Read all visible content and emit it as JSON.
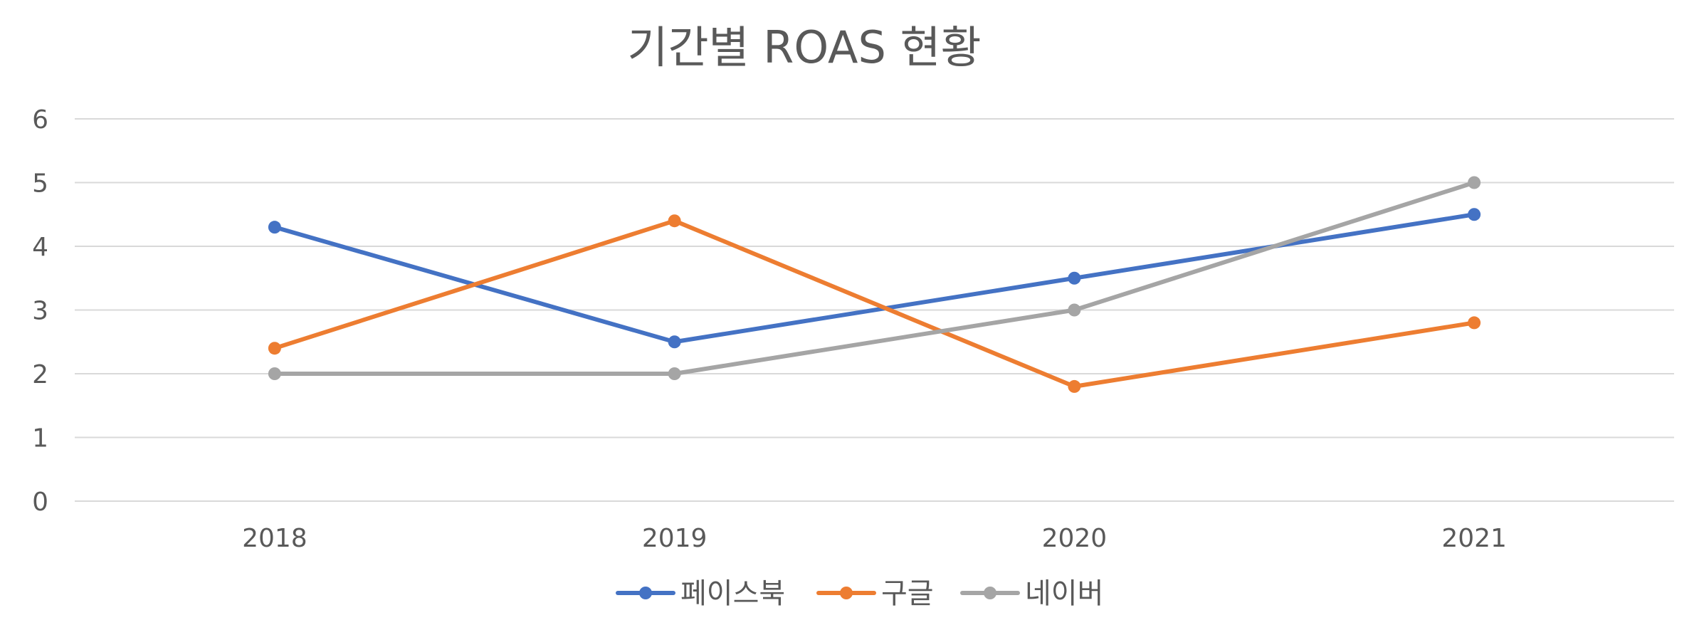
{
  "chart_data": {
    "type": "line",
    "title": "기간별 ROAS 현황",
    "xlabel": "",
    "ylabel": "",
    "categories": [
      "2018",
      "2019",
      "2020",
      "2021"
    ],
    "ylim": [
      0,
      6
    ],
    "yticks": [
      "0",
      "1",
      "2",
      "3",
      "4",
      "5",
      "6"
    ],
    "grid": true,
    "legend_position": "bottom",
    "series": [
      {
        "name": "페이스북",
        "color": "#4472C4",
        "values": [
          4.3,
          2.5,
          3.5,
          4.5
        ]
      },
      {
        "name": "구글",
        "color": "#ED7D31",
        "values": [
          2.4,
          4.4,
          1.8,
          2.8
        ]
      },
      {
        "name": "네이버",
        "color": "#A5A5A5",
        "values": [
          2.0,
          2.0,
          3.0,
          5.0
        ]
      }
    ]
  }
}
